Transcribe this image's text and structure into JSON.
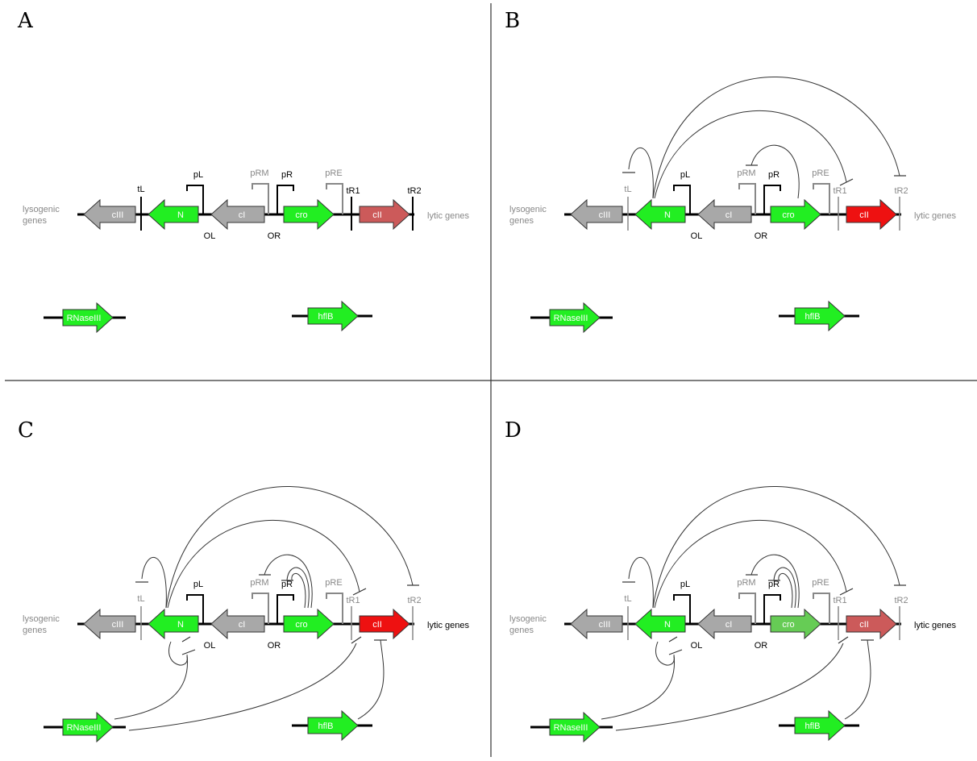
{
  "colors": {
    "green": "#22ee22",
    "grey": "#a8a8a8",
    "red": "#ee1111",
    "pale_red": "#cc5a5a",
    "soft_green": "#66cc55",
    "grey_text": "#888888",
    "black": "#000000"
  },
  "common": {
    "lysogenic_line1": "lysogenic",
    "lysogenic_line2": "genes",
    "lytic_genes": "lytic genes",
    "OL": "OL",
    "OR": "OR",
    "pL": "pL",
    "pR": "pR",
    "pRM": "pRM",
    "pRE": "pRE",
    "tL": "tL",
    "tR1": "tR1",
    "tR2": "tR2",
    "cIII": "cIII",
    "N": "N",
    "cI": "cI",
    "cro": "cro",
    "cII": "cII",
    "RNaseIII": "RNaseIII",
    "hflB": "hflB"
  },
  "panels": [
    {
      "letter": "A",
      "cII_color": "pale_red",
      "cro_color": "green",
      "lytic_dark": false,
      "pRM_grey": true,
      "tL_dark": true,
      "tR1_dark": true,
      "tR2_dark": true,
      "pRE_grey": true
    },
    {
      "letter": "B",
      "cII_color": "red",
      "cro_color": "green",
      "lytic_dark": false,
      "pRM_grey": true,
      "tL_dark": false,
      "tR1_dark": false,
      "tR2_dark": false,
      "pRE_grey": true
    },
    {
      "letter": "C",
      "cII_color": "red",
      "cro_color": "green",
      "lytic_dark": true,
      "pRM_grey": true,
      "tL_dark": false,
      "tR1_dark": false,
      "tR2_dark": false,
      "pRE_grey": true
    },
    {
      "letter": "D",
      "cII_color": "pale_red",
      "cro_color": "soft_green",
      "lytic_dark": true,
      "pRM_grey": true,
      "tL_dark": false,
      "tR1_dark": false,
      "tR2_dark": false,
      "pRE_grey": true
    }
  ]
}
